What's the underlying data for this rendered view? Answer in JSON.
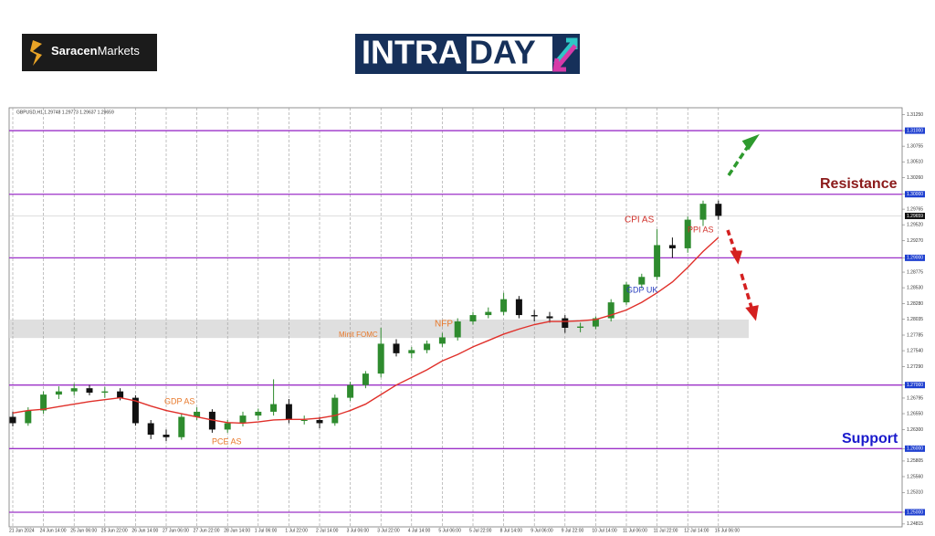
{
  "header": {
    "brand_bold": "Saracen",
    "brand_rest": "Markets",
    "logo_left": "INTRA",
    "logo_right": "DAY"
  },
  "chart_data": {
    "type": "candlestick",
    "title": "GBPUSD,H1  1.29748 1.29773 1.29637 1.29659",
    "categories": [
      "21 Jun 2024",
      null,
      "24 Jun 14:00",
      null,
      "25 Jun 06:00",
      null,
      "25 Jun 22:00",
      null,
      "26 Jun 14:00",
      null,
      "27 Jun 06:00",
      null,
      "27 Jun 22:00",
      null,
      "28 Jun 14:00",
      null,
      "1 Jul 06:00",
      null,
      "1 Jul 22:00",
      null,
      "2 Jul 14:00",
      null,
      "3 Jul 06:00",
      null,
      "3 Jul 22:00",
      null,
      "4 Jul 14:00",
      null,
      "5 Jul 06:00",
      null,
      "5 Jul 22:00",
      null,
      "8 Jul 14:00",
      null,
      "9 Jul 06:00",
      null,
      "9 Jul 22:00",
      null,
      "10 Jul 14:00",
      null,
      "11 Jul 06:00",
      null,
      "11 Jul 22:00",
      null,
      "12 Jul 14:00",
      null,
      "15 Jul 06:00"
    ],
    "open": [
      1.265,
      1.264,
      1.266,
      1.2685,
      1.269,
      1.2695,
      1.2688,
      1.269,
      1.268,
      1.264,
      1.2622,
      1.2618,
      1.265,
      1.2658,
      1.263,
      1.264,
      1.2652,
      1.2658,
      1.267,
      1.2645,
      1.2645,
      1.264,
      1.268,
      1.27,
      1.2718,
      1.2765,
      1.275,
      1.2755,
      1.2765,
      1.2775,
      1.28,
      1.281,
      1.2815,
      1.2835,
      1.281,
      1.2808,
      1.2805,
      1.279,
      1.2792,
      1.2805,
      1.283,
      1.2858,
      1.287,
      1.292,
      1.2915,
      1.296,
      1.2985
    ],
    "high": [
      1.2658,
      1.2665,
      1.269,
      1.2698,
      1.2702,
      1.27,
      1.2697,
      1.2695,
      1.2684,
      1.2645,
      1.263,
      1.2655,
      1.2665,
      1.2662,
      1.2645,
      1.2658,
      1.2663,
      1.2709,
      1.2678,
      1.2652,
      1.265,
      1.2685,
      1.2705,
      1.2722,
      1.279,
      1.2772,
      1.276,
      1.277,
      1.2782,
      1.2805,
      1.2815,
      1.2822,
      1.2845,
      1.284,
      1.2818,
      1.2815,
      1.281,
      1.2798,
      1.2808,
      1.2835,
      1.2862,
      1.2875,
      1.2945,
      1.2932,
      1.2965,
      1.299,
      1.299
    ],
    "low": [
      1.2635,
      1.2636,
      1.2655,
      1.2678,
      1.2684,
      1.2684,
      1.268,
      1.2676,
      1.2636,
      1.2615,
      1.2612,
      1.2614,
      1.2645,
      1.2625,
      1.2625,
      1.2635,
      1.2645,
      1.2652,
      1.264,
      1.2638,
      1.2632,
      1.2636,
      1.2675,
      1.2695,
      1.2712,
      1.2745,
      1.2742,
      1.275,
      1.276,
      1.277,
      1.2795,
      1.2805,
      1.281,
      1.2805,
      1.28,
      1.2798,
      1.2782,
      1.2783,
      1.2788,
      1.28,
      1.2826,
      1.2852,
      1.2865,
      1.29,
      1.2908,
      1.295,
      1.296
    ],
    "close": [
      1.264,
      1.266,
      1.2685,
      1.269,
      1.2695,
      1.2688,
      1.269,
      1.268,
      1.264,
      1.2622,
      1.2618,
      1.265,
      1.2658,
      1.263,
      1.264,
      1.2652,
      1.2658,
      1.267,
      1.2645,
      1.2645,
      1.264,
      1.268,
      1.27,
      1.2718,
      1.2765,
      1.275,
      1.2755,
      1.2765,
      1.2775,
      1.28,
      1.281,
      1.2815,
      1.2835,
      1.281,
      1.2808,
      1.2805,
      1.279,
      1.2792,
      1.2805,
      1.283,
      1.2858,
      1.287,
      1.292,
      1.2915,
      1.296,
      1.2985,
      1.2966
    ],
    "up_color": "#2e8b2e",
    "down_color": "#111111",
    "moving_average": {
      "color": "#e0302a",
      "values": [
        1.2656,
        1.266,
        1.2662,
        1.2666,
        1.267,
        1.2674,
        1.2677,
        1.268,
        1.2675,
        1.2667,
        1.266,
        1.2655,
        1.265,
        1.2645,
        1.2641,
        1.264,
        1.2642,
        1.2645,
        1.2646,
        1.2646,
        1.2648,
        1.2652,
        1.266,
        1.267,
        1.2685,
        1.27,
        1.2712,
        1.2724,
        1.2738,
        1.2748,
        1.276,
        1.277,
        1.278,
        1.2788,
        1.2795,
        1.28,
        1.28,
        1.2801,
        1.2803,
        1.281,
        1.2818,
        1.283,
        1.2845,
        1.2862,
        1.2885,
        1.291,
        1.2932
      ]
    },
    "levels": [
      1.31,
      1.3,
      1.29,
      1.27,
      1.26,
      1.25
    ],
    "level_color": "#9b30c8",
    "zone": [
      1.2774,
      1.2803
    ],
    "zone_color": "#d9d9d9",
    "current_price": {
      "value": 1.29659,
      "label": "1.29659"
    },
    "ylim": [
      1.2477,
      1.3136
    ],
    "yticks": [
      {
        "value": 1.3125,
        "label": "1.31250"
      },
      {
        "value": 1.31,
        "label": "1.31000"
      },
      {
        "value": 1.30755,
        "label": "1.30755"
      },
      {
        "value": 1.3051,
        "label": "1.30510"
      },
      {
        "value": 1.3026,
        "label": "1.30260"
      },
      {
        "value": 1.3,
        "label": "1.30000"
      },
      {
        "value": 1.29765,
        "label": "1.29765"
      },
      {
        "value": 1.2952,
        "label": "1.29520"
      },
      {
        "value": 1.2927,
        "label": "1.29270"
      },
      {
        "value": 1.29,
        "label": "1.29000"
      },
      {
        "value": 1.28775,
        "label": "1.28775"
      },
      {
        "value": 1.2853,
        "label": "1.28530"
      },
      {
        "value": 1.2828,
        "label": "1.28280"
      },
      {
        "value": 1.28035,
        "label": "1.28035"
      },
      {
        "value": 1.27785,
        "label": "1.27785"
      },
      {
        "value": 1.2754,
        "label": "1.27540"
      },
      {
        "value": 1.2729,
        "label": "1.27290"
      },
      {
        "value": 1.27,
        "label": "1.27000"
      },
      {
        "value": 1.26795,
        "label": "1.26795"
      },
      {
        "value": 1.2655,
        "label": "1.26550"
      },
      {
        "value": 1.263,
        "label": "1.26300"
      },
      {
        "value": 1.26,
        "label": "1.26000"
      },
      {
        "value": 1.25805,
        "label": "1.25805"
      },
      {
        "value": 1.2556,
        "label": "1.25560"
      },
      {
        "value": 1.2531,
        "label": "1.25310"
      },
      {
        "value": 1.25,
        "label": "1.25000"
      },
      {
        "value": 1.24815,
        "label": "1.24815"
      }
    ],
    "annotations": [
      {
        "text": "GDP AS",
        "color": "#e8782a"
      },
      {
        "text": "PCE AS",
        "color": "#e8782a"
      },
      {
        "text": "Minit FOMC",
        "color": "#e8782a"
      },
      {
        "text": "NFP",
        "color": "#e8782a"
      },
      {
        "text": "CPI AS",
        "color": "#d0302a"
      },
      {
        "text": "PPI AS",
        "color": "#d0302a"
      },
      {
        "text": "GDP UK",
        "color": "#2a3fbf"
      },
      {
        "text": "Resistance",
        "color": "#8b1a1a"
      },
      {
        "text": "Support",
        "color": "#1a1acc"
      }
    ]
  }
}
